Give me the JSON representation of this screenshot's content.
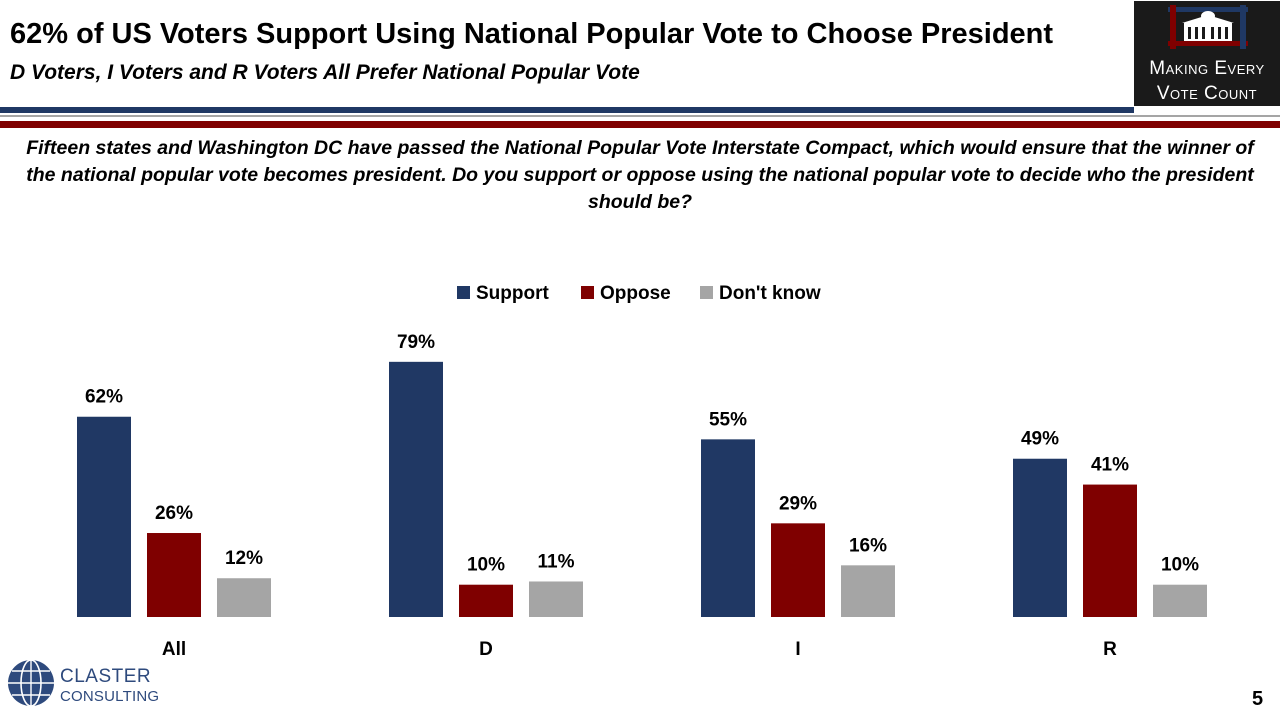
{
  "header": {
    "title": "62% of US Voters Support Using National Popular Vote to Choose President",
    "subtitle": "D Voters, I Voters and R Voters All Prefer National Popular Vote"
  },
  "logo": {
    "line1": "Making Every",
    "line2": "Vote Count"
  },
  "question": "Fifteen states and Washington DC have passed the National Popular Vote Interstate Compact, which would ensure that the winner of the national popular vote becomes president. Do you support or oppose using the national popular vote to decide who the president should be?",
  "footer": {
    "company_line1": "CLASTER",
    "company_line2": "CONSULTING",
    "page_number": "5"
  },
  "colors": {
    "support": "#203864",
    "oppose": "#7f0000",
    "dontknow": "#a5a5a5",
    "brand_blue": "#1f3864",
    "brand_red": "#7f0000"
  },
  "chart_data": {
    "type": "bar",
    "categories": [
      "All",
      "D",
      "I",
      "R"
    ],
    "series": [
      {
        "name": "Support",
        "values": [
          62,
          79,
          55,
          49
        ],
        "labels": [
          "62%",
          "79%",
          "55%",
          "49%"
        ]
      },
      {
        "name": "Oppose",
        "values": [
          26,
          10,
          29,
          41
        ],
        "labels": [
          "26%",
          "10%",
          "29%",
          "41%"
        ]
      },
      {
        "name": "Don't know",
        "values": [
          12,
          11,
          16,
          10
        ],
        "labels": [
          "12%",
          "11%",
          "16%",
          "10%"
        ]
      }
    ],
    "legend_position": "top-center",
    "grid": false
  }
}
